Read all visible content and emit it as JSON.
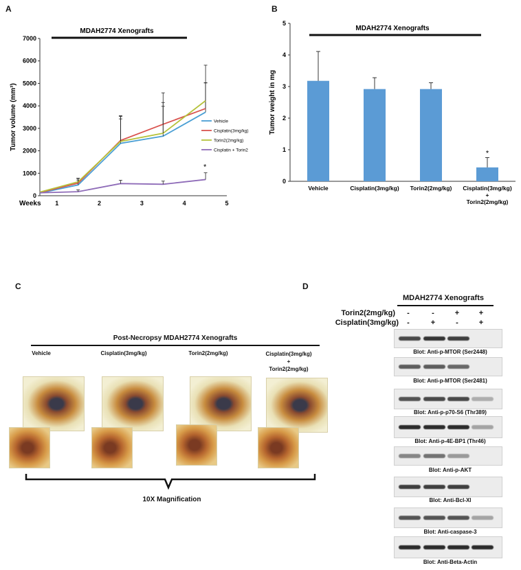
{
  "panels": {
    "a": "A",
    "b": "B",
    "c": "C",
    "d": "D"
  },
  "colors": {
    "bar": "#5b9bd5",
    "vehicle": "#4a9fd4",
    "cisplatin": "#d9534f",
    "torin2": "#b5c23b",
    "combo": "#8e6bb8"
  },
  "chart_data": [
    {
      "type": "line",
      "title": "MDAH2774 Xenografts",
      "xlabel": "Weeks",
      "ylabel": "Tumor volume (mm³)",
      "ylim": [
        0,
        7000
      ],
      "yticks": [
        "0",
        "1000",
        "2000",
        "3000",
        "4000",
        "5000",
        "6000",
        "7000"
      ],
      "xticks": [
        "1",
        "2",
        "3",
        "4",
        "5"
      ],
      "xlim": [
        0.6,
        5
      ],
      "x": [
        0.6,
        1.5,
        2.5,
        3.5,
        4.5
      ],
      "series": [
        {
          "name": "Vehicle",
          "values": [
            120,
            480,
            2330,
            2650,
            3720
          ],
          "err": [
            0,
            220,
            1200,
            1500,
            1300
          ],
          "color_key": "vehicle"
        },
        {
          "name": "Cisplatin(3mg/kg)",
          "values": [
            140,
            560,
            2460,
            3180,
            3880
          ],
          "err": [
            0,
            220,
            1100,
            1400,
            1150
          ],
          "color_key": "cisplatin"
        },
        {
          "name": "Torin2(2mg/kg)",
          "values": [
            160,
            620,
            2420,
            2780,
            4230
          ],
          "err": [
            0,
            150,
            1000,
            1200,
            1580
          ],
          "color_key": "torin2"
        },
        {
          "name": "Cisplatin + Torin2",
          "values": [
            130,
            180,
            540,
            510,
            720
          ],
          "err": [
            0,
            80,
            150,
            140,
            300
          ],
          "color_key": "combo"
        }
      ],
      "annotation": "*",
      "legend_position": "right"
    },
    {
      "type": "bar",
      "title": "MDAH2774 Xenografts",
      "ylabel": "Tumor weight in mg",
      "ylim": [
        0,
        5
      ],
      "yticks": [
        "0",
        "1",
        "2",
        "3",
        "4",
        "5"
      ],
      "categories": [
        "Vehicle",
        "Cisplatin(3mg/kg)",
        "Torin2(2mg/kg)",
        "Cisplatin(3mg/kg)\n+\nTorin2(2mg/kg)"
      ],
      "values": [
        3.18,
        2.92,
        2.92,
        0.44
      ],
      "errors": [
        0.93,
        0.36,
        0.2,
        0.31
      ],
      "annotation": "*"
    }
  ],
  "panel_c": {
    "title": "Post-Necropsy MDAH2774 Xenografts",
    "columns": [
      "Vehicle",
      "Cisplatin(3mg/kg)",
      "Torin2(2mg/kg)",
      "Cisplatin(3mg/kg)\n+\nTorin2(2mg/kg)"
    ],
    "magnification": "10X Magnification"
  },
  "panel_d": {
    "title": "MDAH2774 Xenografts",
    "row_labels": [
      "Torin2(2mg/kg)",
      "Cisplatin(3mg/kg)"
    ],
    "row_signs": [
      [
        "-",
        "-",
        "+",
        "+"
      ],
      [
        "-",
        "+",
        "-",
        "+"
      ]
    ],
    "blots": [
      {
        "label": "Blot: Anti-p-MTOR (Ser2448)",
        "bands": [
          0.8,
          0.9,
          0.85,
          0
        ]
      },
      {
        "label": "Blot: Anti-p-MTOR (Ser2481)",
        "bands": [
          0.7,
          0.7,
          0.65,
          0
        ]
      },
      {
        "label": "Blot: Anti-p-p70-S6 (Thr389)",
        "bands": [
          0.75,
          0.8,
          0.8,
          0.3
        ]
      },
      {
        "label": "Blot: Anti-p-4E-BP1 (Thr46)",
        "bands": [
          0.95,
          0.95,
          0.95,
          0.35
        ]
      },
      {
        "label": "Blot: Anti-p-AKT",
        "bands": [
          0.5,
          0.6,
          0.4,
          0
        ]
      },
      {
        "label": "Blot: Anti-Bcl-Xl",
        "bands": [
          0.85,
          0.85,
          0.85,
          0
        ]
      },
      {
        "label": "Blot: Anti-caspase-3",
        "bands": [
          0.75,
          0.75,
          0.75,
          0.35
        ]
      },
      {
        "label": "Blot: Anti-Beta-Actin",
        "bands": [
          0.95,
          0.95,
          0.95,
          0.95
        ]
      }
    ]
  }
}
